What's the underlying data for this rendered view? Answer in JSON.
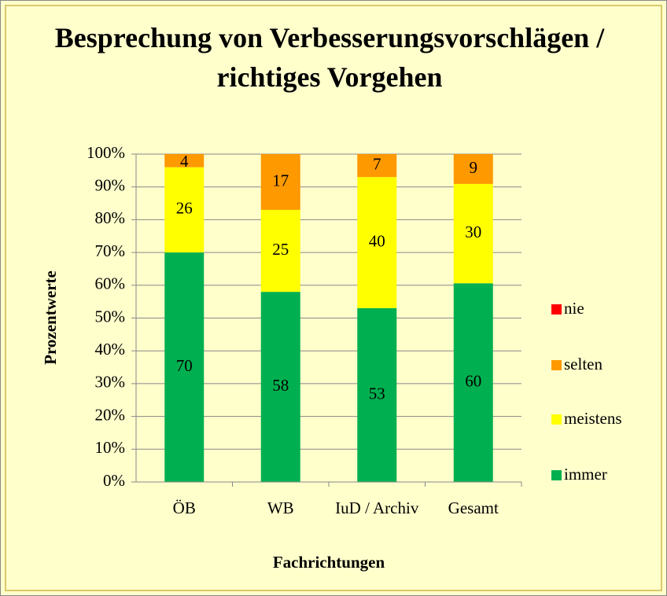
{
  "chart_data": {
    "type": "bar",
    "stacking": "percent",
    "title": "Besprechung von Verbesserungsvorschlägen / richtiges Vorgehen",
    "x_label": "Fachrichtungen",
    "y_label": "Prozentwerte",
    "categories": [
      "ÖB",
      "WB",
      "IuD / Archiv",
      "Gesamt"
    ],
    "series": [
      {
        "name": "immer",
        "color": "#00b050",
        "values": [
          70,
          58,
          53,
          60
        ]
      },
      {
        "name": "meistens",
        "color": "#ffff00",
        "values": [
          26,
          25,
          40,
          30
        ]
      },
      {
        "name": "selten",
        "color": "#ff9900",
        "values": [
          4,
          17,
          7,
          9
        ]
      },
      {
        "name": "nie",
        "color": "#ff0000",
        "values": [
          0,
          0,
          0,
          0
        ]
      }
    ],
    "ylim": [
      0,
      100
    ],
    "yticks": [
      {
        "value": 0,
        "label": "0%"
      },
      {
        "value": 10,
        "label": "10%"
      },
      {
        "value": 20,
        "label": "20%"
      },
      {
        "value": 30,
        "label": "30%"
      },
      {
        "value": 40,
        "label": "40%"
      },
      {
        "value": 50,
        "label": "50%"
      },
      {
        "value": 60,
        "label": "60%"
      },
      {
        "value": 70,
        "label": "70%"
      },
      {
        "value": 80,
        "label": "80%"
      },
      {
        "value": 90,
        "label": "90%"
      },
      {
        "value": 100,
        "label": "100%"
      }
    ],
    "grid": true,
    "legend": "right"
  }
}
